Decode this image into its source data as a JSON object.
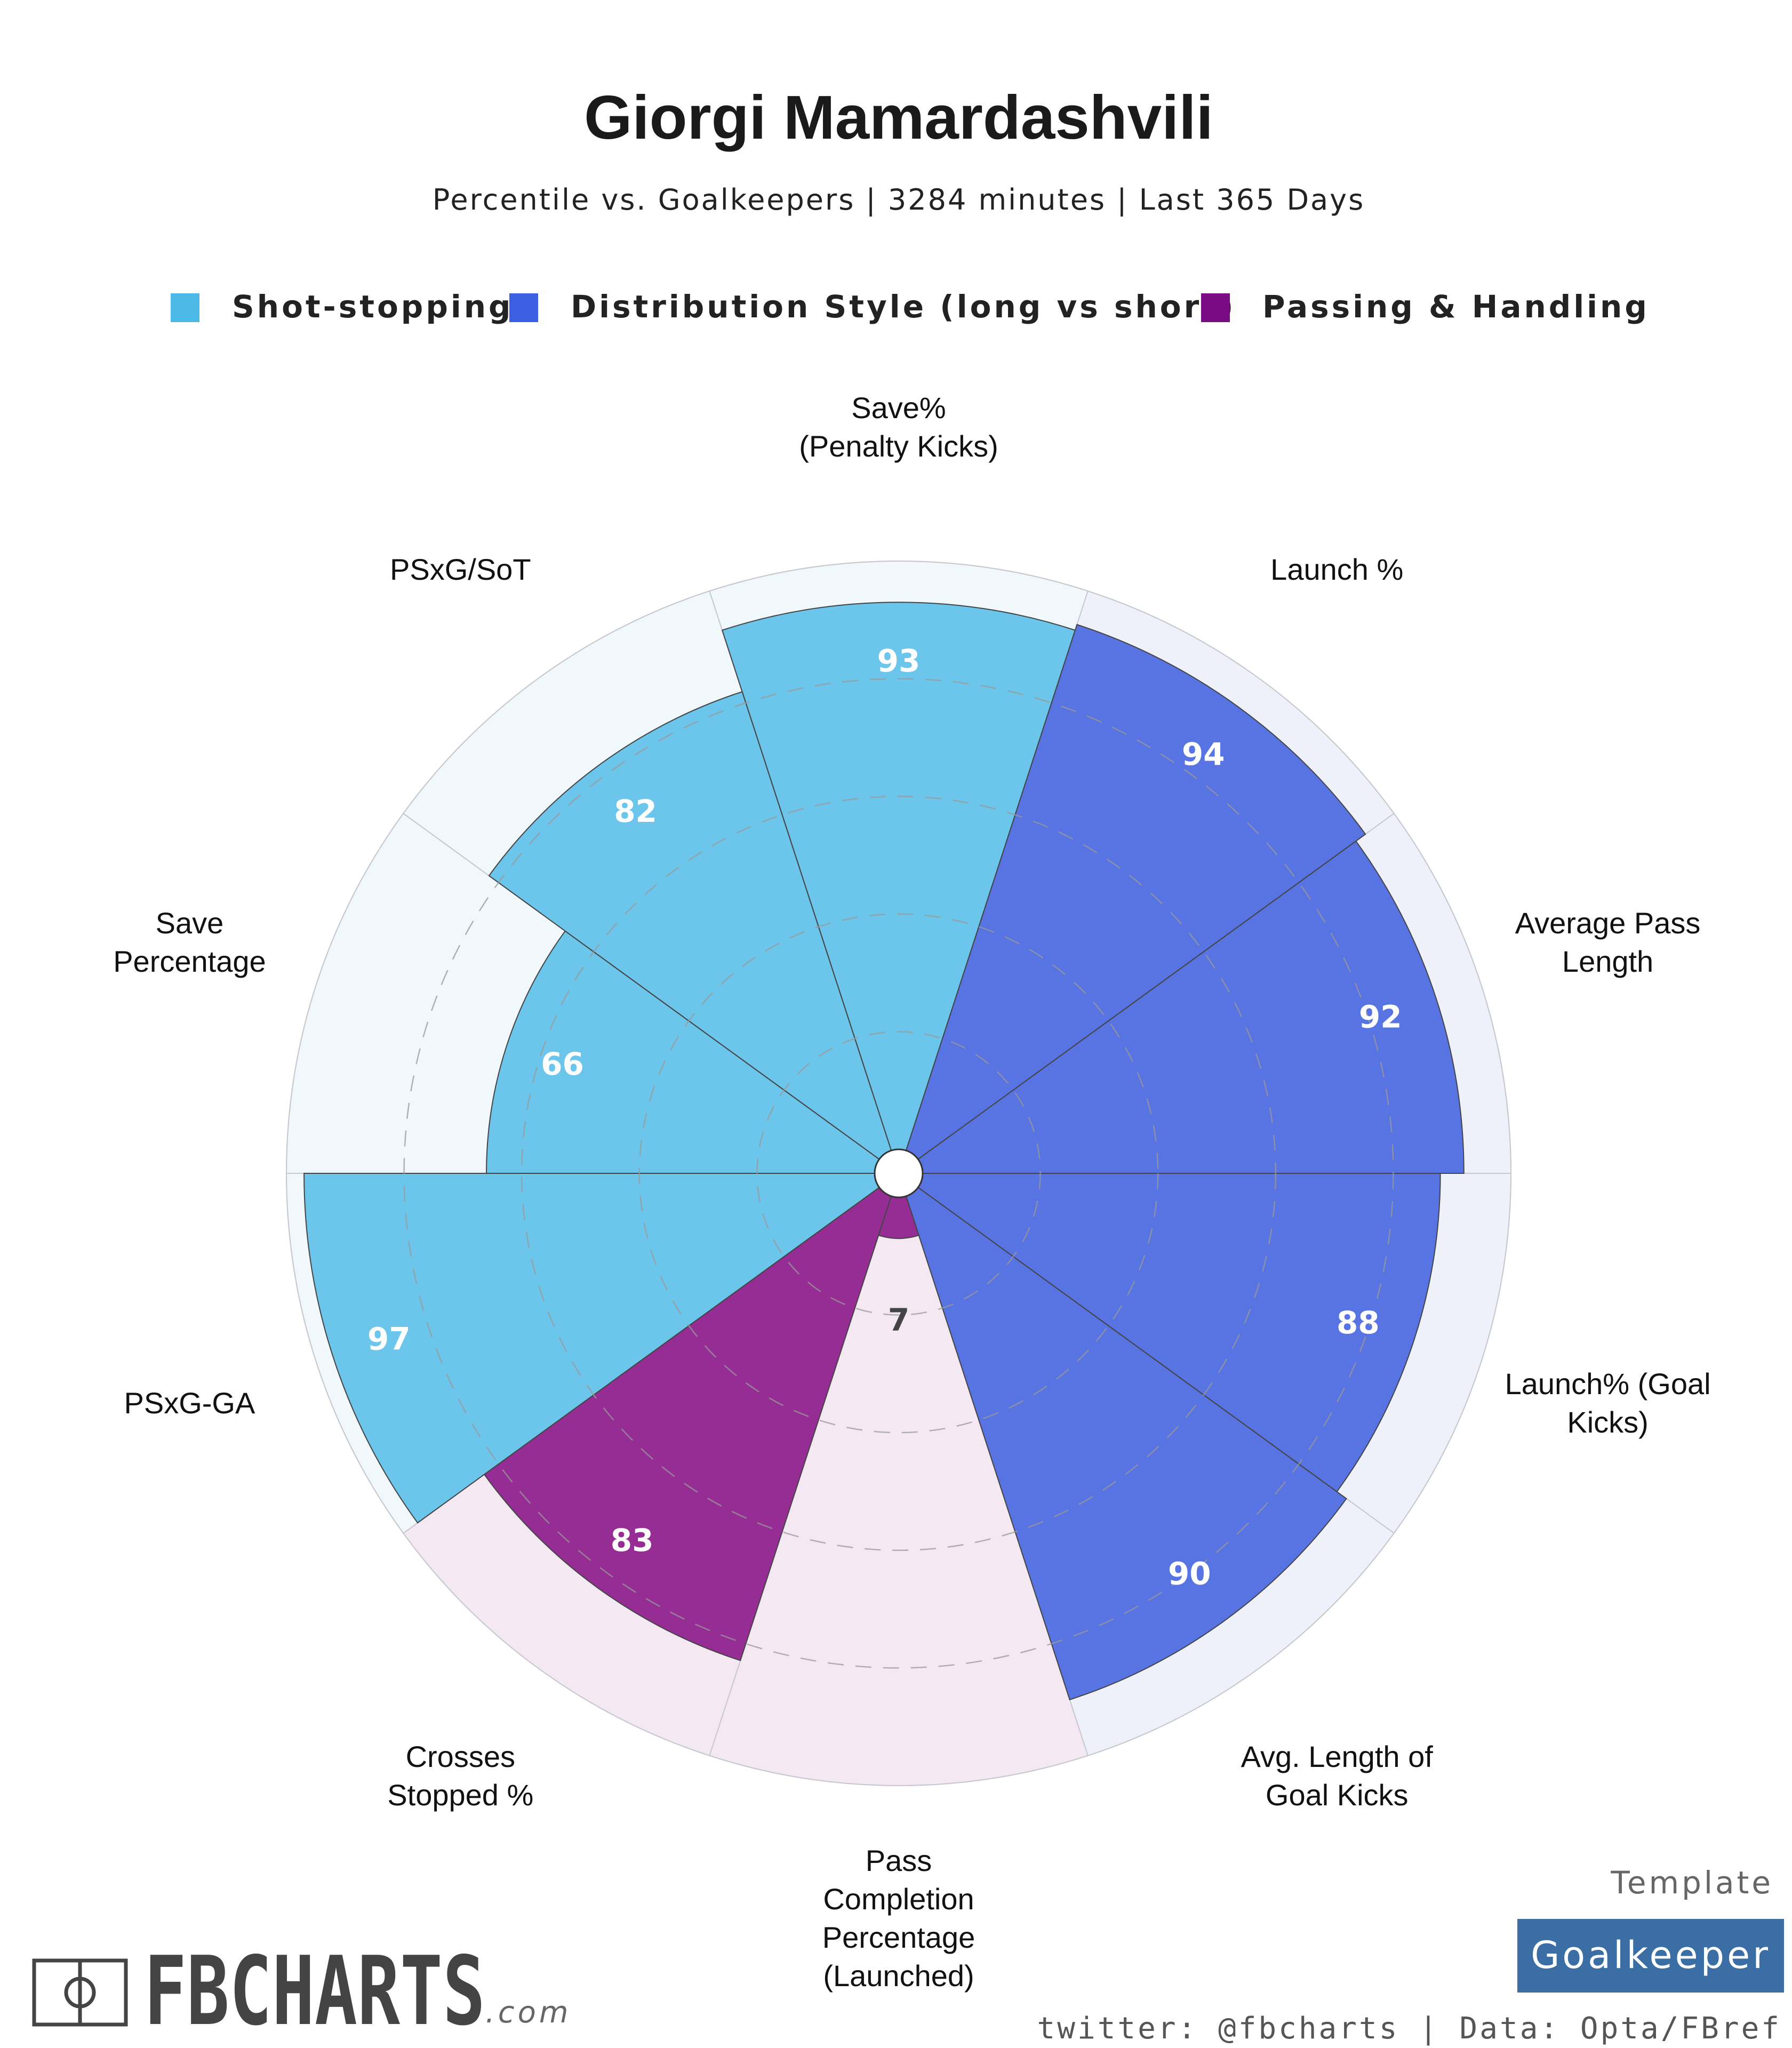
{
  "chart_data": {
    "type": "polar-bar",
    "title": "Giorgi Mamardashvili",
    "subtitle": "Percentile vs. Goalkeepers | 3284 minutes | Last 365 Days",
    "rlim": [
      0,
      100
    ],
    "legend_position": "top",
    "groups": [
      {
        "name": "Shot-stopping",
        "color": "#4cb9e6",
        "fill": "#6cc5ea",
        "bg": "#f0f8fb"
      },
      {
        "name": "Distribution Style (long vs short)",
        "color": "#3b5fe0",
        "fill": "#5874e2",
        "bg": "#eef0fa"
      },
      {
        "name": "Passing & Handling",
        "color": "#7b0a85",
        "fill": "#962d94",
        "bg": "#f4e9f3"
      }
    ],
    "categories": [
      {
        "label": "Save%\n(Penalty Kicks)",
        "value": 93,
        "group": 0
      },
      {
        "label": "Launch %",
        "value": 94,
        "group": 1
      },
      {
        "label": "Average Pass\nLength",
        "value": 92,
        "group": 1
      },
      {
        "label": "Launch% (Goal\nKicks)",
        "value": 88,
        "group": 1
      },
      {
        "label": "Avg. Length of\nGoal Kicks",
        "value": 90,
        "group": 1
      },
      {
        "label": "Pass\nCompletion\nPercentage\n(Launched)",
        "value": 7,
        "group": 2
      },
      {
        "label": "Crosses\nStopped %",
        "value": 83,
        "group": 2
      },
      {
        "label": "PSxG-GA",
        "value": 97,
        "group": 0
      },
      {
        "label": "Save\nPercentage",
        "value": 66,
        "group": 0
      },
      {
        "label": "PSxG/SoT",
        "value": 82,
        "group": 0
      }
    ]
  },
  "footer": {
    "brand": "FBCHARTS",
    "brand_suffix": ".com",
    "template_label": "Template",
    "template_name": "Goalkeeper",
    "template_color": "#3a6ea5",
    "credit": "twitter: @fbcharts | Data: Opta/FBref"
  }
}
